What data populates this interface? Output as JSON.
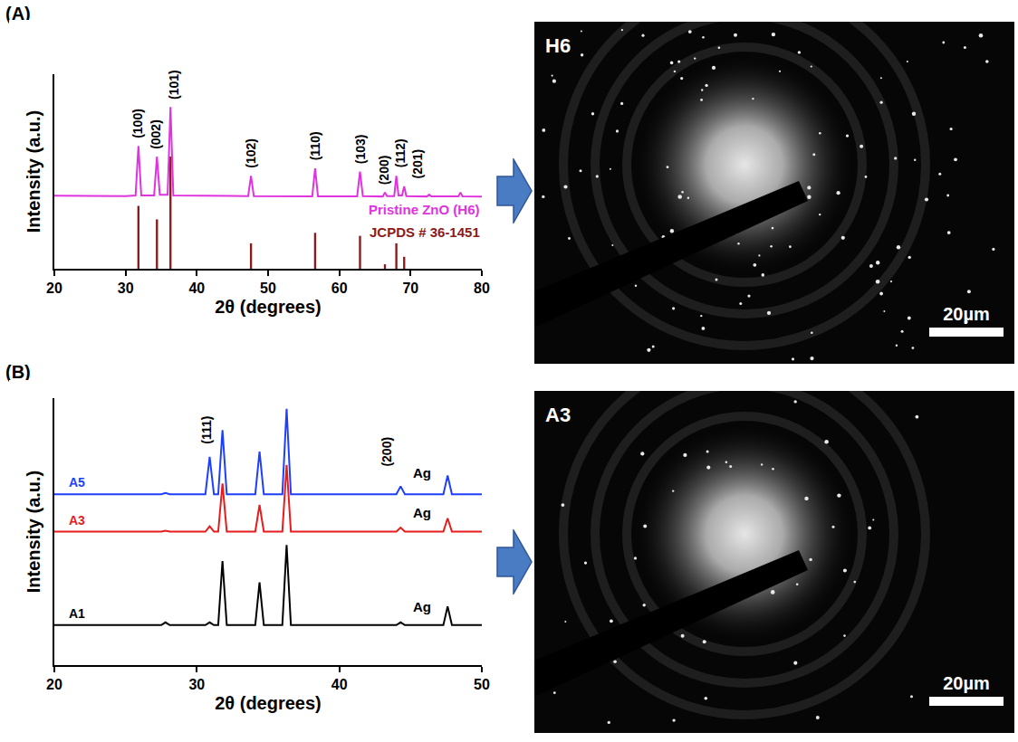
{
  "chart_data": [
    {
      "type": "line",
      "panel": "(A)",
      "x_label": "2θ (degrees)",
      "y_label": "Intensity (a.u.)",
      "xlim": [
        20,
        80
      ],
      "xticks": [
        20,
        30,
        40,
        50,
        60,
        70,
        80
      ],
      "ylim": [
        0,
        130
      ],
      "tick_labels": "x",
      "grid": false,
      "series": [
        {
          "name": "Pristine ZnO (H6)",
          "type": "line",
          "color": "#e033e0",
          "x": [
            20,
            30,
            31.4,
            31.8,
            32.2,
            34.0,
            34.4,
            34.8,
            35.9,
            36.3,
            36.7,
            47.2,
            47.6,
            48.0,
            56.2,
            56.6,
            57.0,
            62.5,
            62.9,
            63.3,
            66.1,
            66.4,
            66.7,
            67.7,
            68.0,
            68.3,
            68.8,
            69.1,
            69.4,
            72.3,
            72.6,
            72.9,
            76.7,
            77.0,
            77.3,
            80
          ],
          "values": [
            48.8,
            48.5,
            49,
            82,
            49,
            49,
            75,
            49.5,
            49.5,
            108,
            49,
            48.5,
            62,
            48.5,
            48.3,
            67,
            48.3,
            48.3,
            65,
            48.5,
            48.3,
            51,
            48.5,
            48.5,
            62,
            49,
            49,
            55,
            48.5,
            48.3,
            49.5,
            48.3,
            48.3,
            51,
            48.3,
            48.2
          ]
        },
        {
          "name": "JCPDS # 36-1451",
          "type": "bar",
          "color": "#8b1a1a",
          "x": [
            31.8,
            34.4,
            36.3,
            47.6,
            56.6,
            62.9,
            66.4,
            68.0,
            69.1
          ],
          "values": [
            42,
            33,
            75,
            17,
            24,
            22,
            3,
            17,
            8
          ]
        }
      ],
      "annotations": [
        {
          "text": "(100)",
          "x": 31.6,
          "y": 97
        },
        {
          "text": "(002)",
          "x": 34.2,
          "y": 90
        },
        {
          "text": "(101)",
          "x": 36.7,
          "y": 123
        },
        {
          "text": "(102)",
          "x": 47.6,
          "y": 77
        },
        {
          "text": "(110)",
          "x": 56.6,
          "y": 82
        },
        {
          "text": "(103)",
          "x": 62.9,
          "y": 80
        },
        {
          "text": "(200)",
          "x": 66.2,
          "y": 66
        },
        {
          "text": "(112)",
          "x": 68.5,
          "y": 77
        },
        {
          "text": "(201)",
          "x": 71.0,
          "y": 70
        }
      ]
    },
    {
      "type": "line",
      "panel": "(B)",
      "x_label": "2θ (degrees)",
      "y_label": "Intensity (a.u.)",
      "xlim": [
        20,
        50
      ],
      "xticks": [
        20,
        30,
        40,
        50
      ],
      "ylim": [
        0,
        100
      ],
      "tick_labels": "x",
      "grid": false,
      "series": [
        {
          "name": "A5",
          "type": "line",
          "color": "#1f3fff",
          "x": [
            20,
            27.5,
            27.8,
            28.1,
            30.6,
            30.9,
            31.2,
            31.5,
            31.8,
            32.1,
            34.1,
            34.4,
            34.7,
            36.0,
            36.3,
            36.6,
            44.0,
            44.3,
            44.6,
            47.3,
            47.6,
            47.9,
            50
          ],
          "values": [
            64,
            64,
            64.5,
            64,
            64,
            78,
            64,
            64,
            88,
            64,
            64,
            80,
            64,
            64,
            96,
            64,
            64,
            67,
            64,
            64,
            71,
            64,
            64
          ]
        },
        {
          "name": "A3",
          "type": "line",
          "color": "#e81c1c",
          "x": [
            20,
            27.5,
            27.8,
            28.1,
            30.6,
            30.9,
            31.2,
            31.5,
            31.8,
            32.1,
            34.1,
            34.4,
            34.7,
            36.0,
            36.3,
            36.6,
            44.0,
            44.3,
            44.6,
            47.3,
            47.6,
            47.9,
            50
          ],
          "values": [
            50,
            50,
            50.3,
            50,
            50,
            52,
            50,
            50,
            68,
            50,
            50,
            60,
            50,
            50,
            75,
            50,
            50,
            51.5,
            50,
            50,
            55,
            50,
            50
          ]
        },
        {
          "name": "A1",
          "type": "line",
          "color": "#000000",
          "x": [
            20,
            27.5,
            27.8,
            28.1,
            30.6,
            30.9,
            31.2,
            31.5,
            31.8,
            32.1,
            34.1,
            34.4,
            34.7,
            36.0,
            36.3,
            36.6,
            44.0,
            44.3,
            44.6,
            47.3,
            47.6,
            47.9,
            50
          ],
          "values": [
            15,
            15,
            16,
            15,
            15,
            16,
            15,
            15,
            39,
            15,
            15,
            31,
            15,
            15,
            45,
            15,
            15,
            16,
            15,
            15,
            22,
            15,
            15
          ]
        }
      ],
      "annotations": [
        {
          "text": "(111)",
          "x": 30.7,
          "y": 88
        },
        {
          "text": "(200)",
          "x": 43.3,
          "y": 80
        },
        {
          "text": "Ag",
          "x": 45.8,
          "y": 72
        },
        {
          "text": "Ag",
          "x": 45.8,
          "y": 57
        },
        {
          "text": "Ag",
          "x": 45.8,
          "y": 22
        }
      ]
    }
  ],
  "images": [
    {
      "label": "H6",
      "scale_bar": "20µm"
    },
    {
      "label": "A3",
      "scale_bar": "20µm"
    }
  ]
}
